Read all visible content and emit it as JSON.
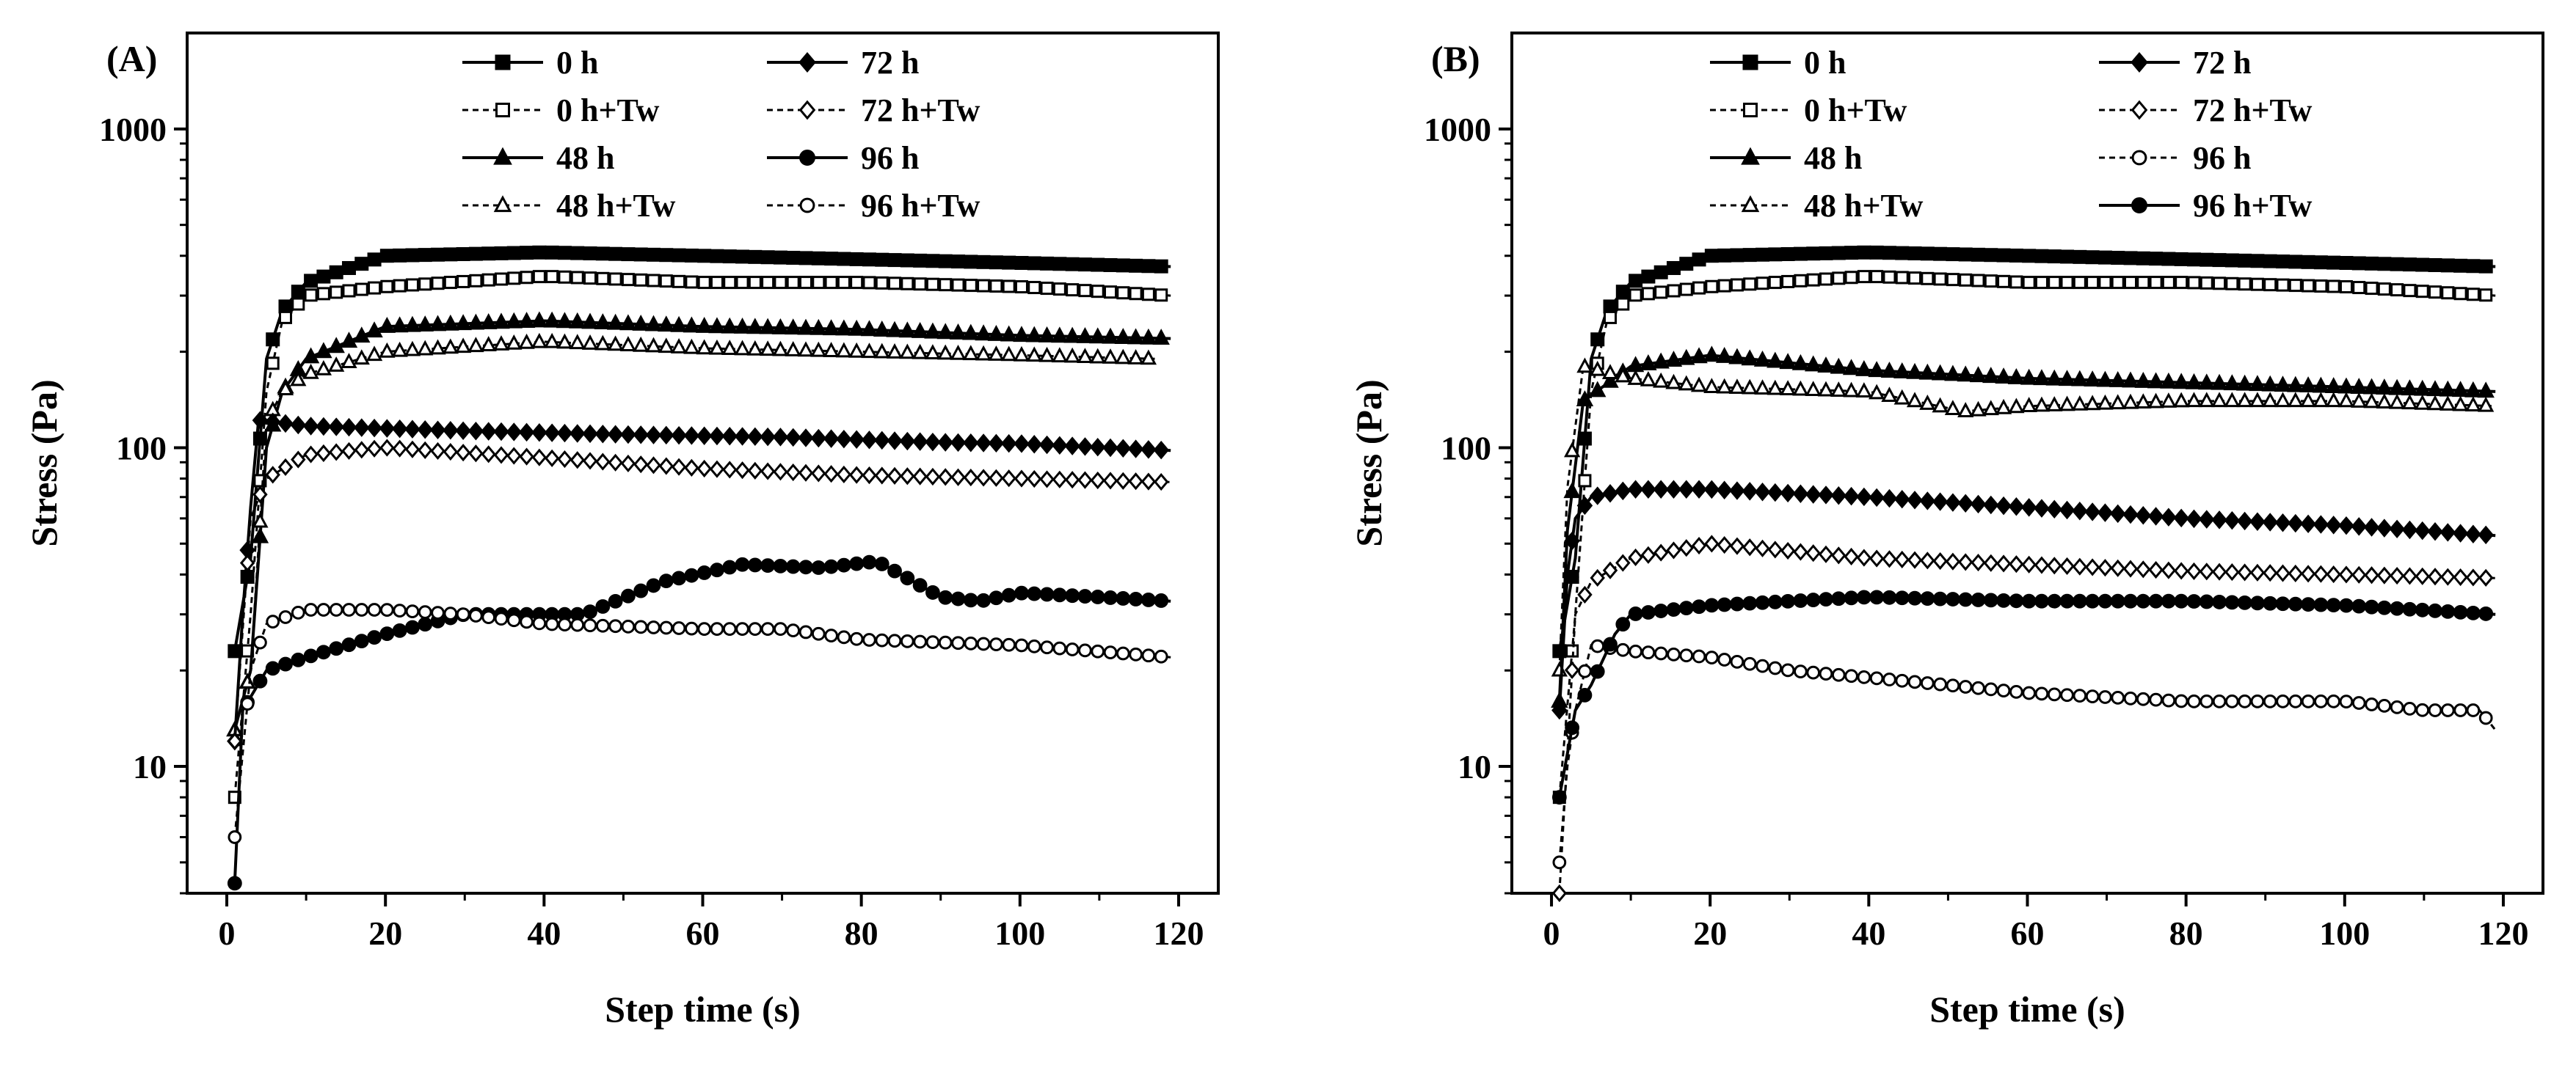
{
  "chart_data": [
    {
      "type": "line",
      "panel_label": "(A)",
      "xlabel": "Step time (s)",
      "ylabel": "Stress (Pa)",
      "xlim": [
        -5,
        125
      ],
      "ylim": [
        4,
        2000
      ],
      "yscale": "log",
      "x_ticks": [
        0,
        20,
        40,
        60,
        80,
        100,
        120
      ],
      "y_ticks": [
        10,
        100,
        1000
      ],
      "legend": [
        "0 h",
        "72 h",
        "0 h+Tw",
        "72 h+Tw",
        "48 h",
        "96 h",
        "48 h+Tw",
        "96 h+Tw"
      ],
      "series": [
        {
          "name": "0 h",
          "marker": "square",
          "filled": true,
          "dashed": false,
          "points": [
            [
              1,
              23
            ],
            [
              3,
              45
            ],
            [
              5,
              190
            ],
            [
              7,
              270
            ],
            [
              10,
              330
            ],
            [
              20,
              400
            ],
            [
              40,
              410
            ],
            [
              60,
              400
            ],
            [
              80,
              390
            ],
            [
              100,
              380
            ],
            [
              119,
              370
            ]
          ]
        },
        {
          "name": "0 h+Tw",
          "marker": "square",
          "filled": false,
          "dashed": true,
          "points": [
            [
              1,
              8
            ],
            [
              3,
              30
            ],
            [
              5,
              150
            ],
            [
              7,
              250
            ],
            [
              10,
              300
            ],
            [
              20,
              320
            ],
            [
              40,
              345
            ],
            [
              60,
              330
            ],
            [
              80,
              330
            ],
            [
              100,
              320
            ],
            [
              119,
              300
            ]
          ]
        },
        {
          "name": "48 h",
          "marker": "triangle",
          "filled": true,
          "dashed": false,
          "points": [
            [
              1,
              13
            ],
            [
              3,
              20
            ],
            [
              5,
              100
            ],
            [
              7,
              150
            ],
            [
              10,
              190
            ],
            [
              20,
              240
            ],
            [
              40,
              250
            ],
            [
              60,
              240
            ],
            [
              80,
              235
            ],
            [
              100,
              225
            ],
            [
              119,
              220
            ]
          ]
        },
        {
          "name": "48 h+Tw",
          "marker": "triangle",
          "filled": false,
          "dashed": true,
          "points": [
            [
              1,
              13
            ],
            [
              3,
              20
            ],
            [
              5,
              120
            ],
            [
              7,
              150
            ],
            [
              10,
              170
            ],
            [
              20,
              200
            ],
            [
              40,
              215
            ],
            [
              60,
              205
            ],
            [
              80,
              200
            ],
            [
              100,
              195
            ],
            [
              117,
              190
            ]
          ]
        },
        {
          "name": "72 h",
          "marker": "diamond",
          "filled": true,
          "dashed": false,
          "points": [
            [
              1,
              12
            ],
            [
              2,
              30
            ],
            [
              3,
              65
            ],
            [
              4,
              122
            ],
            [
              10,
              117
            ],
            [
              30,
              113
            ],
            [
              50,
              110
            ],
            [
              70,
              108
            ],
            [
              90,
              104
            ],
            [
              100,
              103
            ],
            [
              119,
              98
            ]
          ]
        },
        {
          "name": "72 h+Tw",
          "marker": "diamond",
          "filled": false,
          "dashed": true,
          "points": [
            [
              1,
              12
            ],
            [
              3,
              60
            ],
            [
              5,
              80
            ],
            [
              10,
              95
            ],
            [
              20,
              100
            ],
            [
              40,
              93
            ],
            [
              60,
              86
            ],
            [
              80,
              82
            ],
            [
              100,
              80
            ],
            [
              119,
              78
            ]
          ]
        },
        {
          "name": "96 h",
          "marker": "circle",
          "filled": true,
          "dashed": false,
          "points": [
            [
              1,
              4.3
            ],
            [
              2,
              15
            ],
            [
              5,
              20
            ],
            [
              10,
              22
            ],
            [
              20,
              26
            ],
            [
              30,
              30
            ],
            [
              45,
              30
            ],
            [
              55,
              38
            ],
            [
              65,
              43
            ],
            [
              75,
              42
            ],
            [
              82,
              44
            ],
            [
              85,
              40
            ],
            [
              90,
              34
            ],
            [
              95,
              33
            ],
            [
              100,
              35
            ],
            [
              110,
              34
            ],
            [
              119,
              33
            ]
          ]
        },
        {
          "name": "96 h+Tw",
          "marker": "circle",
          "filled": false,
          "dashed": true,
          "points": [
            [
              1,
              6
            ],
            [
              3,
              20
            ],
            [
              5,
              28
            ],
            [
              10,
              31
            ],
            [
              20,
              31
            ],
            [
              30,
              30
            ],
            [
              40,
              28
            ],
            [
              60,
              27
            ],
            [
              70,
              27
            ],
            [
              80,
              25
            ],
            [
              100,
              24
            ],
            [
              119,
              22
            ]
          ]
        }
      ]
    },
    {
      "type": "line",
      "panel_label": "(B)",
      "xlabel": "Step time (s)",
      "ylabel": "Stress (Pa)",
      "xlim": [
        -5,
        125
      ],
      "ylim": [
        4,
        2000
      ],
      "yscale": "log",
      "x_ticks": [
        0,
        20,
        40,
        60,
        80,
        100,
        120
      ],
      "y_ticks": [
        10,
        100,
        1000
      ],
      "legend": [
        "0 h",
        "72 h",
        "0 h+Tw",
        "72 h+Tw",
        "48 h",
        "96 h",
        "48 h+Tw",
        "96 h+Tw"
      ],
      "series": [
        {
          "name": "0 h",
          "marker": "square",
          "filled": true,
          "dashed": false,
          "points": [
            [
              1,
              23
            ],
            [
              3,
              45
            ],
            [
              5,
              190
            ],
            [
              7,
              270
            ],
            [
              10,
              330
            ],
            [
              20,
              400
            ],
            [
              40,
              410
            ],
            [
              60,
              400
            ],
            [
              80,
              390
            ],
            [
              100,
              380
            ],
            [
              119,
              370
            ]
          ]
        },
        {
          "name": "0 h+Tw",
          "marker": "square",
          "filled": false,
          "dashed": true,
          "points": [
            [
              1,
              8
            ],
            [
              3,
              30
            ],
            [
              5,
              150
            ],
            [
              7,
              250
            ],
            [
              10,
              300
            ],
            [
              20,
              320
            ],
            [
              40,
              345
            ],
            [
              60,
              330
            ],
            [
              80,
              330
            ],
            [
              100,
              320
            ],
            [
              119,
              300
            ]
          ]
        },
        {
          "name": "48 h",
          "marker": "triangle",
          "filled": true,
          "dashed": false,
          "points": [
            [
              1,
              16
            ],
            [
              2,
              55
            ],
            [
              4,
              140
            ],
            [
              10,
              180
            ],
            [
              20,
              195
            ],
            [
              40,
              175
            ],
            [
              60,
              165
            ],
            [
              80,
              160
            ],
            [
              100,
              155
            ],
            [
              119,
              150
            ]
          ]
        },
        {
          "name": "48 h+Tw",
          "marker": "triangle",
          "filled": false,
          "dashed": true,
          "points": [
            [
              1,
              20
            ],
            [
              2,
              75
            ],
            [
              4,
              180
            ],
            [
              10,
              165
            ],
            [
              20,
              155
            ],
            [
              40,
              150
            ],
            [
              52,
              130
            ],
            [
              60,
              135
            ],
            [
              80,
              140
            ],
            [
              100,
              140
            ],
            [
              119,
              135
            ]
          ]
        },
        {
          "name": "72 h",
          "marker": "diamond",
          "filled": true,
          "dashed": false,
          "points": [
            [
              1,
              15
            ],
            [
              2,
              40
            ],
            [
              3,
              60
            ],
            [
              5,
              70
            ],
            [
              10,
              74
            ],
            [
              20,
              74
            ],
            [
              40,
              70
            ],
            [
              60,
              65
            ],
            [
              80,
              60
            ],
            [
              100,
              57
            ],
            [
              119,
              53
            ]
          ]
        },
        {
          "name": "72 h+Tw",
          "marker": "diamond",
          "filled": false,
          "dashed": true,
          "points": [
            [
              1,
              4
            ],
            [
              3,
              30
            ],
            [
              5,
              38
            ],
            [
              10,
              45
            ],
            [
              20,
              50
            ],
            [
              40,
              45
            ],
            [
              60,
              43
            ],
            [
              80,
              41
            ],
            [
              100,
              40
            ],
            [
              119,
              39
            ]
          ]
        },
        {
          "name": "96 h",
          "marker": "circle",
          "filled": false,
          "dashed": true,
          "points": [
            [
              1,
              5
            ],
            [
              2,
              10
            ],
            [
              3,
              15
            ],
            [
              5,
              24
            ],
            [
              10,
              23
            ],
            [
              20,
              22
            ],
            [
              30,
              20
            ],
            [
              40,
              19
            ],
            [
              50,
              18
            ],
            [
              60,
              17
            ],
            [
              80,
              16
            ],
            [
              100,
              16
            ],
            [
              110,
              15
            ],
            [
              117,
              15
            ],
            [
              118,
              14
            ],
            [
              119,
              13
            ]
          ]
        },
        {
          "name": "96 h+Tw",
          "marker": "circle",
          "filled": true,
          "dashed": false,
          "points": [
            [
              1,
              8
            ],
            [
              3,
              15
            ],
            [
              5,
              18
            ],
            [
              8,
              26
            ],
            [
              10,
              30
            ],
            [
              20,
              32
            ],
            [
              40,
              34
            ],
            [
              60,
              33
            ],
            [
              80,
              33
            ],
            [
              100,
              32
            ],
            [
              119,
              30
            ]
          ]
        }
      ]
    }
  ]
}
